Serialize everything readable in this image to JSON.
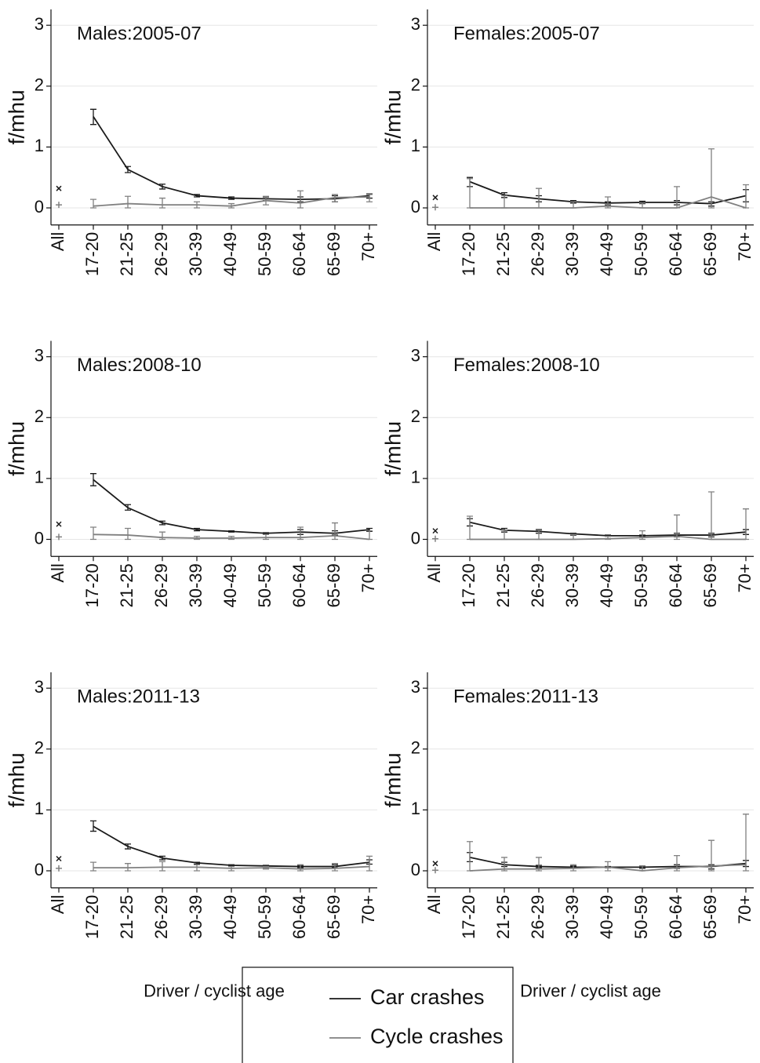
{
  "chart_data": [
    {
      "type": "line",
      "title": "Males:2005-07",
      "ylabel": "f/mhu",
      "categories": [
        "All",
        "17-20",
        "21-25",
        "26-29",
        "30-39",
        "40-49",
        "50-59",
        "60-64",
        "65-69",
        "70+"
      ],
      "ylim": [
        -0.28,
        3.26
      ],
      "yticks": [
        0,
        1,
        2,
        3
      ],
      "grid": true,
      "legend": "bottom",
      "series": [
        {
          "name": "Car crashes",
          "color": "#1a1a1a",
          "first_marker": "x",
          "values": [
            0.32,
            1.5,
            0.63,
            0.35,
            0.2,
            0.16,
            0.15,
            0.14,
            0.15,
            0.2
          ],
          "error_low": [
            null,
            1.37,
            0.58,
            0.31,
            0.18,
            0.14,
            0.12,
            0.1,
            0.1,
            0.16
          ],
          "error_high": [
            null,
            1.62,
            0.68,
            0.39,
            0.22,
            0.18,
            0.18,
            0.18,
            0.2,
            0.23
          ]
        },
        {
          "name": "Cycle crashes",
          "color": "#808080",
          "first_marker": "+",
          "values": [
            0.05,
            0.03,
            0.07,
            0.05,
            0.05,
            0.03,
            0.12,
            0.08,
            0.17,
            0.18
          ],
          "error_low": [
            null,
            0,
            0,
            0,
            0,
            0,
            0.05,
            0,
            0.1,
            0.1
          ],
          "error_high": [
            null,
            0.14,
            0.19,
            0.16,
            0.1,
            0.07,
            0.19,
            0.28,
            0.22,
            0.22
          ]
        }
      ]
    },
    {
      "type": "line",
      "title": "Females:2005-07",
      "ylabel": "f/mhu",
      "categories": [
        "All",
        "17-20",
        "21-25",
        "26-29",
        "30-39",
        "40-49",
        "50-59",
        "60-64",
        "65-69",
        "70+"
      ],
      "ylim": [
        -0.28,
        3.26
      ],
      "yticks": [
        0,
        1,
        2,
        3
      ],
      "grid": true,
      "series": [
        {
          "name": "Car crashes",
          "color": "#1a1a1a",
          "first_marker": "x",
          "values": [
            0.17,
            0.43,
            0.21,
            0.15,
            0.1,
            0.08,
            0.09,
            0.09,
            0.07,
            0.2
          ],
          "error_low": [
            null,
            0.35,
            0.17,
            0.1,
            0.08,
            0.05,
            0.07,
            0.05,
            0.03,
            0.1
          ],
          "error_high": [
            null,
            0.5,
            0.25,
            0.2,
            0.12,
            0.1,
            0.11,
            0.12,
            0.1,
            0.3
          ]
        },
        {
          "name": "Cycle crashes",
          "color": "#808080",
          "first_marker": "+",
          "values": [
            0.01,
            0,
            0,
            0,
            0,
            0.03,
            0,
            0,
            0.18,
            0
          ],
          "error_low": [
            null,
            0,
            0,
            0,
            0,
            0,
            0,
            0,
            0,
            0
          ],
          "error_high": [
            null,
            0.48,
            0.2,
            0.32,
            0.1,
            0.18,
            0.08,
            0.35,
            0.97,
            0.38
          ]
        }
      ]
    },
    {
      "type": "line",
      "title": "Males:2008-10",
      "ylabel": "f/mhu",
      "categories": [
        "All",
        "17-20",
        "21-25",
        "26-29",
        "30-39",
        "40-49",
        "50-59",
        "60-64",
        "65-69",
        "70+"
      ],
      "ylim": [
        -0.28,
        3.26
      ],
      "yticks": [
        0,
        1,
        2,
        3
      ],
      "grid": true,
      "series": [
        {
          "name": "Car crashes",
          "color": "#1a1a1a",
          "first_marker": "x",
          "values": [
            0.25,
            0.98,
            0.52,
            0.27,
            0.16,
            0.13,
            0.1,
            0.12,
            0.1,
            0.16
          ],
          "error_low": [
            null,
            0.88,
            0.48,
            0.24,
            0.14,
            0.12,
            0.09,
            0.08,
            0.07,
            0.13
          ],
          "error_high": [
            null,
            1.08,
            0.57,
            0.3,
            0.18,
            0.14,
            0.11,
            0.16,
            0.14,
            0.18
          ]
        },
        {
          "name": "Cycle crashes",
          "color": "#808080",
          "first_marker": "+",
          "values": [
            0.04,
            0.08,
            0.07,
            0.03,
            0.02,
            0.02,
            0.03,
            0.03,
            0.06,
            0
          ],
          "error_low": [
            null,
            0,
            0,
            0,
            0,
            0,
            0,
            0,
            0,
            0
          ],
          "error_high": [
            null,
            0.2,
            0.18,
            0.12,
            0.05,
            0.05,
            0.08,
            0.2,
            0.27,
            0.14
          ]
        }
      ]
    },
    {
      "type": "line",
      "title": "Females:2008-10",
      "ylabel": "f/mhu",
      "categories": [
        "All",
        "17-20",
        "21-25",
        "26-29",
        "30-39",
        "40-49",
        "50-59",
        "60-64",
        "65-69",
        "70+"
      ],
      "ylim": [
        -0.28,
        3.26
      ],
      "yticks": [
        0,
        1,
        2,
        3
      ],
      "grid": true,
      "series": [
        {
          "name": "Car crashes",
          "color": "#1a1a1a",
          "first_marker": "x",
          "values": [
            0.14,
            0.28,
            0.15,
            0.13,
            0.09,
            0.06,
            0.06,
            0.07,
            0.07,
            0.12
          ],
          "error_low": [
            null,
            0.22,
            0.12,
            0.1,
            0.07,
            0.05,
            0.05,
            0.04,
            0.04,
            0.08
          ],
          "error_high": [
            null,
            0.34,
            0.18,
            0.16,
            0.1,
            0.07,
            0.07,
            0.1,
            0.1,
            0.16
          ]
        },
        {
          "name": "Cycle crashes",
          "color": "#808080",
          "first_marker": "+",
          "values": [
            0.01,
            0,
            0,
            0,
            0,
            0.01,
            0.03,
            0.05,
            0,
            0
          ],
          "error_low": [
            null,
            0,
            0,
            0,
            0,
            0,
            0,
            0,
            0,
            0
          ],
          "error_high": [
            null,
            0.38,
            0.15,
            0.15,
            0.08,
            0.05,
            0.14,
            0.4,
            0.78,
            0.5
          ]
        }
      ]
    },
    {
      "type": "line",
      "title": "Males:2011-13",
      "ylabel": "f/mhu",
      "xlabel": "Driver / cyclist age",
      "categories": [
        "All",
        "17-20",
        "21-25",
        "26-29",
        "30-39",
        "40-49",
        "50-59",
        "60-64",
        "65-69",
        "70+"
      ],
      "ylim": [
        -0.28,
        3.26
      ],
      "yticks": [
        0,
        1,
        2,
        3
      ],
      "grid": true,
      "series": [
        {
          "name": "Car crashes",
          "color": "#1a1a1a",
          "first_marker": "x",
          "values": [
            0.2,
            0.73,
            0.4,
            0.21,
            0.13,
            0.09,
            0.08,
            0.07,
            0.07,
            0.14
          ],
          "error_low": [
            null,
            0.65,
            0.36,
            0.18,
            0.11,
            0.08,
            0.07,
            0.05,
            0.05,
            0.11
          ],
          "error_high": [
            null,
            0.82,
            0.44,
            0.24,
            0.14,
            0.1,
            0.09,
            0.09,
            0.1,
            0.18
          ]
        },
        {
          "name": "Cycle crashes",
          "color": "#808080",
          "first_marker": "+",
          "values": [
            0.04,
            0.05,
            0.05,
            0.06,
            0.06,
            0.04,
            0.05,
            0.03,
            0.04,
            0.07
          ],
          "error_low": [
            null,
            0,
            0,
            0,
            0,
            0,
            0.03,
            0,
            0,
            0
          ],
          "error_high": [
            null,
            0.14,
            0.12,
            0.15,
            0.1,
            0.07,
            0.07,
            0.1,
            0.12,
            0.24
          ]
        }
      ]
    },
    {
      "type": "line",
      "title": "Females:2011-13",
      "ylabel": "f/mhu",
      "xlabel": "Driver / cyclist age",
      "categories": [
        "All",
        "17-20",
        "21-25",
        "26-29",
        "30-39",
        "40-49",
        "50-59",
        "60-64",
        "65-69",
        "70+"
      ],
      "ylim": [
        -0.28,
        3.26
      ],
      "yticks": [
        0,
        1,
        2,
        3
      ],
      "grid": true,
      "series": [
        {
          "name": "Car crashes",
          "color": "#1a1a1a",
          "first_marker": "x",
          "values": [
            0.12,
            0.22,
            0.1,
            0.07,
            0.06,
            0.06,
            0.06,
            0.07,
            0.07,
            0.12
          ],
          "error_low": [
            null,
            0.15,
            0.07,
            0.05,
            0.04,
            0.05,
            0.04,
            0.04,
            0.03,
            0.07
          ],
          "error_high": [
            null,
            0.3,
            0.14,
            0.09,
            0.08,
            0.07,
            0.08,
            0.1,
            0.1,
            0.17
          ]
        },
        {
          "name": "Cycle crashes",
          "color": "#808080",
          "first_marker": "+",
          "values": [
            0.01,
            0,
            0.03,
            0.03,
            0.04,
            0.06,
            0,
            0.05,
            0.08,
            0.1
          ],
          "error_low": [
            null,
            0,
            0,
            0,
            0,
            0,
            0,
            0,
            0,
            0
          ],
          "error_high": [
            null,
            0.48,
            0.22,
            0.22,
            0.1,
            0.15,
            0.08,
            0.25,
            0.5,
            0.93
          ]
        }
      ]
    }
  ]
}
